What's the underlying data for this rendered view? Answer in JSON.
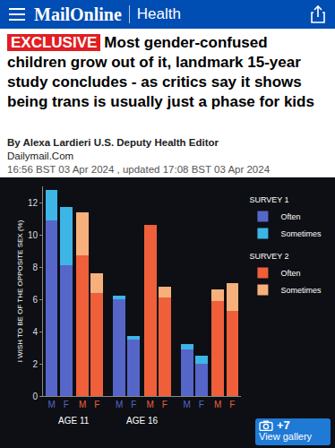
{
  "page": {
    "header": {
      "brand": "MailOnline",
      "section": "Health"
    },
    "headline": {
      "label": "EXCLUSIVE",
      "text": "Most gender-confused children grow out of it, landmark 15-year study concludes - as critics say it shows being trans is usually just a phase for kids"
    },
    "byline": {
      "author": "By Alexa Lardieri U.S. Deputy Health Editor",
      "outlet": "Dailymail.Com",
      "timestamp": "16:56 BST 03 Apr 2024 , updated 17:08 BST 03 Apr 2024"
    },
    "gallery": {
      "count": "+7",
      "label": "View gallery"
    }
  },
  "chart_data": {
    "type": "bar",
    "stacked": true,
    "y_label": "I WISH TO BE OF THE OPPOSITE SEX (%)",
    "categories": [
      "M",
      "F",
      "M",
      "F",
      "M",
      "F",
      "M",
      "F",
      "M",
      "F",
      "M",
      "F"
    ],
    "groups": [
      "AGE 11",
      "AGE 16",
      null
    ],
    "ylim": [
      0,
      13
    ],
    "yticks": [
      0,
      2,
      4,
      6,
      8,
      10,
      12
    ],
    "grid": false,
    "legend": "top right",
    "series": [
      {
        "name": "Often",
        "group": "SURVEY 1",
        "color": "#5566c8",
        "values": [
          10.9,
          8.1,
          null,
          null,
          6.0,
          3.5,
          null,
          null,
          2.9,
          2.0,
          null,
          null
        ]
      },
      {
        "name": "Sometimes",
        "group": "SURVEY 1",
        "color": "#3db5e6",
        "values": [
          1.9,
          3.6,
          null,
          null,
          0.2,
          0.2,
          null,
          null,
          0.3,
          0.5,
          null,
          null
        ]
      },
      {
        "name": "Often",
        "group": "SURVEY 2",
        "color": "#ee5f3a",
        "values": [
          null,
          null,
          8.7,
          6.4,
          null,
          null,
          10.6,
          6.1,
          null,
          null,
          5.9,
          5.3
        ]
      },
      {
        "name": "Sometimes",
        "group": "SURVEY 2",
        "color": "#f7b07c",
        "values": [
          null,
          null,
          2.7,
          1.2,
          null,
          null,
          0,
          0.7,
          null,
          null,
          0.7,
          1.7
        ]
      }
    ]
  }
}
